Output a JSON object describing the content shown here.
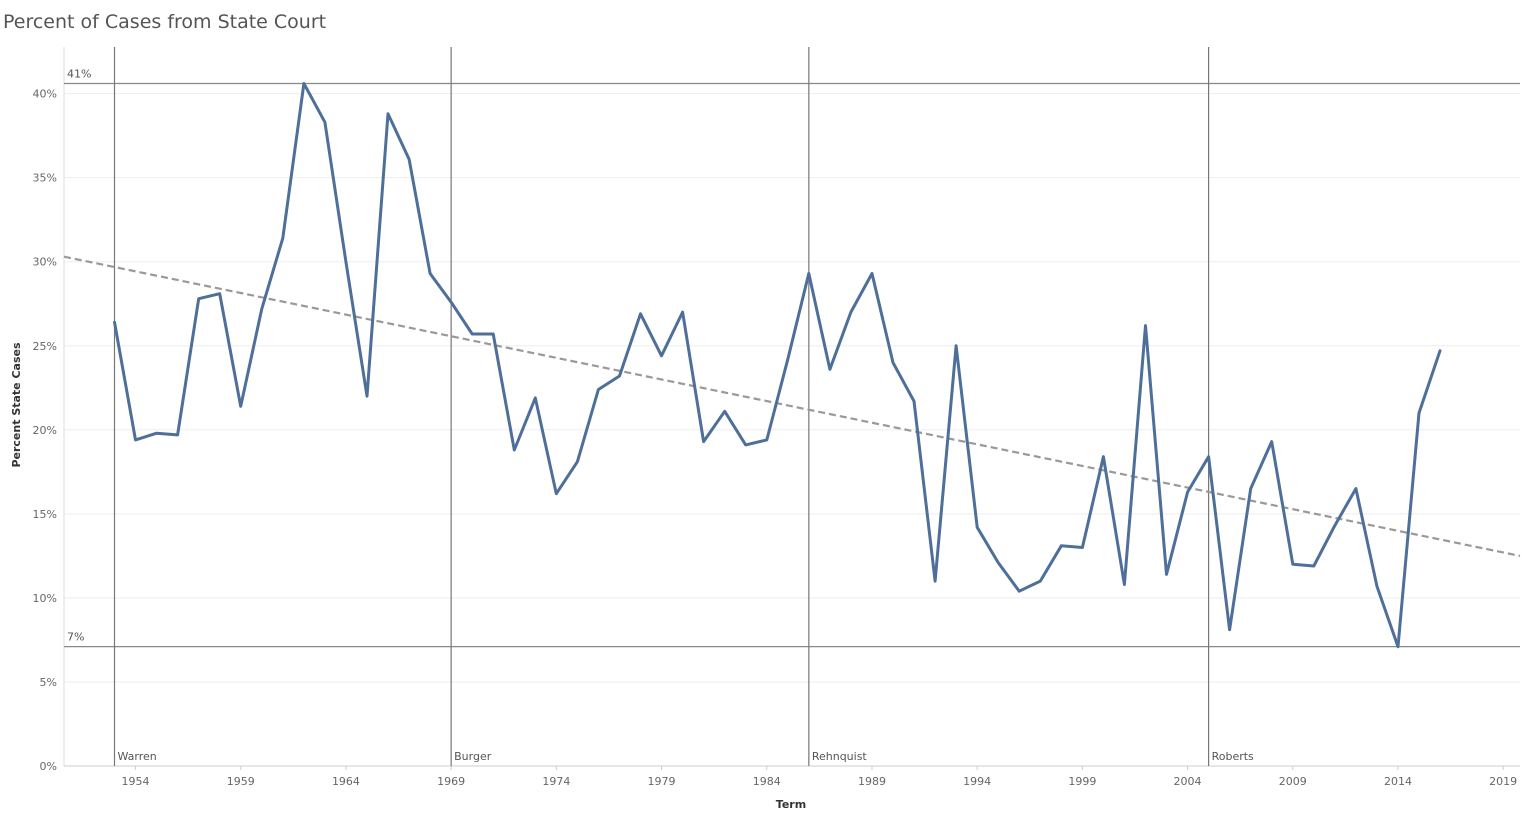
{
  "chart_data": {
    "type": "line",
    "title": "Percent of Cases from State Court",
    "xlabel": "Term",
    "ylabel": "Percent State Cases",
    "xlim": [
      1950.6,
      2019.8
    ],
    "ylim": [
      0,
      42
    ],
    "x_ticks": [
      1954,
      1959,
      1964,
      1969,
      1974,
      1979,
      1984,
      1989,
      1994,
      1999,
      2004,
      2009,
      2014,
      2019
    ],
    "y_ticks": [
      0,
      5,
      10,
      15,
      20,
      25,
      30,
      35,
      40
    ],
    "y_tick_labels": [
      "0%",
      "5%",
      "10%",
      "15%",
      "20%",
      "25%",
      "30%",
      "35%",
      "40%"
    ],
    "grid": true,
    "line_color": "#4e6f99",
    "series": [
      {
        "x": [
          1953,
          1954,
          1955,
          1956,
          1957,
          1958,
          1959,
          1960,
          1961,
          1962,
          1963,
          1964,
          1965,
          1966,
          1967,
          1968,
          1969,
          1970,
          1971,
          1972,
          1973,
          1974,
          1975,
          1976,
          1977,
          1978,
          1979,
          1980,
          1981,
          1982,
          1983,
          1984,
          1985,
          1986,
          1987,
          1988,
          1989,
          1990,
          1991,
          1992,
          1993,
          1994,
          1995,
          1996,
          1997,
          1998,
          1999,
          2000,
          2001,
          2002,
          2003,
          2004,
          2005,
          2006,
          2007,
          2008,
          2009,
          2010,
          2011,
          2012,
          2013,
          2014,
          2015,
          2016
        ],
        "values": [
          26.4,
          19.4,
          19.8,
          19.7,
          27.8,
          28.1,
          21.4,
          27.2,
          31.4,
          40.6,
          38.3,
          30.0,
          22.0,
          38.8,
          36.1,
          29.3,
          27.6,
          25.7,
          25.7,
          18.8,
          21.9,
          16.2,
          18.1,
          22.4,
          23.2,
          26.9,
          24.4,
          27.0,
          19.3,
          21.1,
          19.1,
          19.4,
          24.2,
          29.3,
          23.6,
          27.0,
          29.3,
          24.0,
          21.7,
          11.0,
          25.0,
          14.2,
          12.1,
          10.4,
          11.0,
          13.1,
          13.0,
          18.4,
          10.8,
          26.2,
          11.4,
          16.3,
          18.4,
          8.1,
          16.5,
          19.3,
          12.0,
          11.9,
          14.3,
          16.5,
          10.7,
          7.1,
          21.0,
          24.7
        ]
      }
    ],
    "trend_line": {
      "x": [
        1950.6,
        2019.8
      ],
      "values": [
        30.3,
        12.5
      ],
      "color": "#999999"
    },
    "reference_lines": [
      {
        "label": "41%",
        "value": 40.6
      },
      {
        "label": "7%",
        "value": 7.1
      }
    ],
    "era_lines": [
      {
        "label": "Warren",
        "x": 1953
      },
      {
        "label": "Burger",
        "x": 1969
      },
      {
        "label": "Rehnquist",
        "x": 1986
      },
      {
        "label": "Roberts",
        "x": 2005
      }
    ]
  }
}
